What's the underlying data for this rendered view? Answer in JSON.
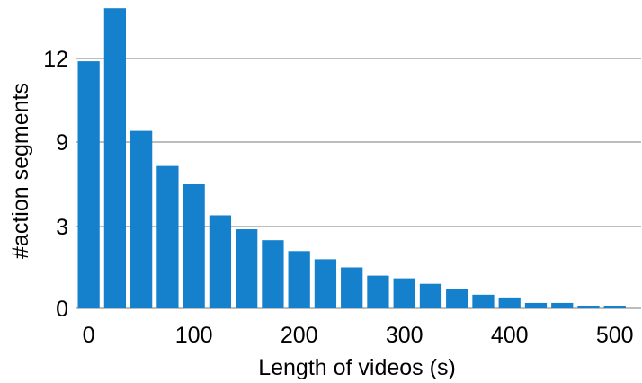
{
  "chart_data": {
    "type": "bar",
    "title": "",
    "xlabel": "Length of videos (s)",
    "ylabel": "#action segments",
    "bin_width": 25,
    "x": [
      0,
      25,
      50,
      75,
      100,
      125,
      150,
      175,
      200,
      225,
      250,
      275,
      300,
      325,
      350,
      375,
      400,
      425,
      450,
      475,
      500
    ],
    "values": [
      11.9,
      13.8,
      9.4,
      7.3,
      6.0,
      3.8,
      2.9,
      2.5,
      2.1,
      1.8,
      1.5,
      1.2,
      1.1,
      0.9,
      0.7,
      0.5,
      0.4,
      0.2,
      0.2,
      0.1,
      0.1
    ],
    "y_ticks": [
      0,
      3,
      9,
      12
    ],
    "y_tick_labels": [
      "0",
      "3",
      "9",
      "12"
    ],
    "x_ticks": [
      0,
      100,
      200,
      300,
      400,
      500
    ],
    "x_tick_labels": [
      "0",
      "100",
      "200",
      "300",
      "400",
      "500"
    ],
    "xlim": [
      -12.5,
      525
    ],
    "grid": true,
    "bar_color": "#1581cc",
    "grid_color": "#bdbdbd"
  }
}
